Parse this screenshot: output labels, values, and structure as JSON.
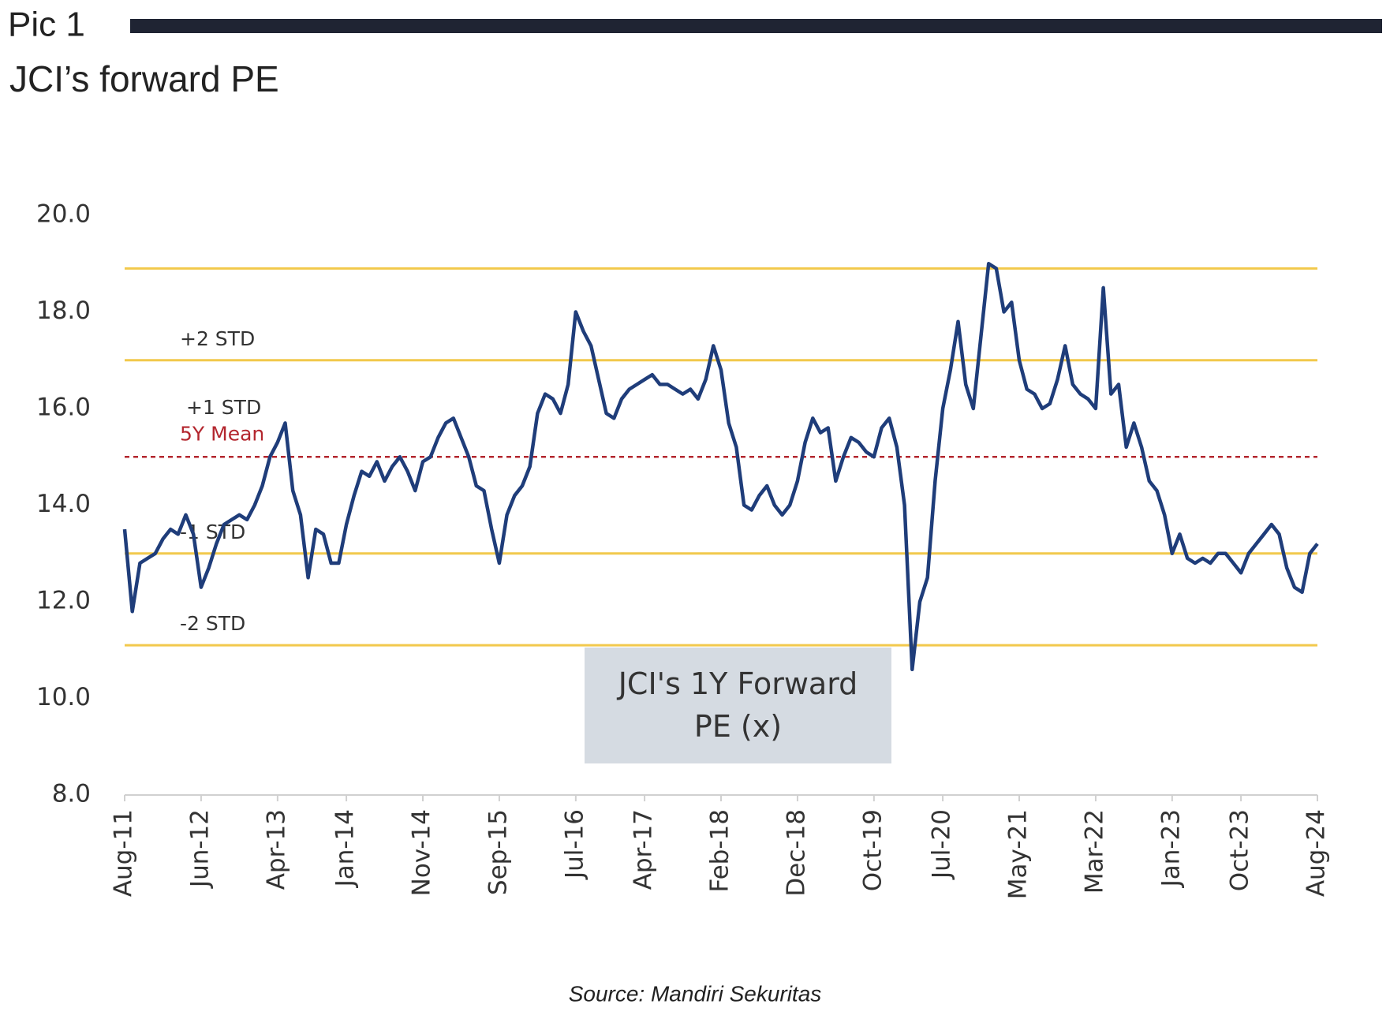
{
  "header": {
    "label": "Pic 1",
    "title": "JCI’s forward PE"
  },
  "chart_data": {
    "type": "line",
    "x": [
      "Aug-11",
      "Sep-11",
      "Oct-11",
      "Nov-11",
      "Dec-11",
      "Jan-12",
      "Feb-12",
      "Mar-12",
      "Apr-12",
      "May-12",
      "Jun-12",
      "Jul-12",
      "Aug-12",
      "Sep-12",
      "Oct-12",
      "Nov-12",
      "Dec-12",
      "Jan-13",
      "Feb-13",
      "Mar-13",
      "Apr-13",
      "May-13",
      "Jun-13",
      "Jul-13",
      "Aug-13",
      "Sep-13",
      "Oct-13",
      "Nov-13",
      "Dec-13",
      "Jan-14",
      "Feb-14",
      "Mar-14",
      "Apr-14",
      "May-14",
      "Jun-14",
      "Jul-14",
      "Aug-14",
      "Sep-14",
      "Oct-14",
      "Nov-14",
      "Dec-14",
      "Jan-15",
      "Feb-15",
      "Mar-15",
      "Apr-15",
      "May-15",
      "Jun-15",
      "Jul-15",
      "Aug-15",
      "Sep-15",
      "Oct-15",
      "Nov-15",
      "Dec-15",
      "Jan-16",
      "Feb-16",
      "Mar-16",
      "Apr-16",
      "May-16",
      "Jun-16",
      "Jul-16",
      "Aug-16",
      "Sep-16",
      "Oct-16",
      "Nov-16",
      "Dec-16",
      "Jan-17",
      "Feb-17",
      "Mar-17",
      "Apr-17",
      "May-17",
      "Jun-17",
      "Jul-17",
      "Aug-17",
      "Sep-17",
      "Oct-17",
      "Nov-17",
      "Dec-17",
      "Jan-18",
      "Feb-18",
      "Mar-18",
      "Apr-18",
      "May-18",
      "Jun-18",
      "Jul-18",
      "Aug-18",
      "Sep-18",
      "Oct-18",
      "Nov-18",
      "Dec-18",
      "Jan-19",
      "Feb-19",
      "Mar-19",
      "Apr-19",
      "May-19",
      "Jun-19",
      "Jul-19",
      "Aug-19",
      "Sep-19",
      "Oct-19",
      "Nov-19",
      "Dec-19",
      "Jan-20",
      "Feb-20",
      "Mar-20",
      "Apr-20",
      "May-20",
      "Jun-20",
      "Jul-20",
      "Aug-20",
      "Sep-20",
      "Oct-20",
      "Nov-20",
      "Dec-20",
      "Jan-21",
      "Feb-21",
      "Mar-21",
      "Apr-21",
      "May-21",
      "Jun-21",
      "Jul-21",
      "Aug-21",
      "Sep-21",
      "Oct-21",
      "Nov-21",
      "Dec-21",
      "Jan-22",
      "Feb-22",
      "Mar-22",
      "Apr-22",
      "May-22",
      "Jun-22",
      "Jul-22",
      "Aug-22",
      "Sep-22",
      "Oct-22",
      "Nov-22",
      "Dec-22",
      "Jan-23",
      "Feb-23",
      "Mar-23",
      "Apr-23",
      "May-23",
      "Jun-23",
      "Jul-23",
      "Aug-23",
      "Sep-23",
      "Oct-23",
      "Nov-23",
      "Dec-23",
      "Jan-24",
      "Feb-24",
      "Mar-24",
      "Apr-24",
      "May-24",
      "Jun-24",
      "Jul-24",
      "Aug-24"
    ],
    "series": [
      {
        "name": "JCI's 1Y Forward PE (x)",
        "color": "#1f3d7a",
        "values": [
          13.5,
          11.8,
          12.8,
          12.9,
          13.0,
          13.3,
          13.5,
          13.4,
          13.8,
          13.4,
          12.3,
          12.7,
          13.2,
          13.6,
          13.7,
          13.8,
          13.7,
          14.0,
          14.4,
          15.0,
          15.3,
          15.7,
          14.3,
          13.8,
          12.5,
          13.5,
          13.4,
          12.8,
          12.8,
          13.6,
          14.2,
          14.7,
          14.6,
          14.9,
          14.5,
          14.8,
          15.0,
          14.7,
          14.3,
          14.9,
          15.0,
          15.4,
          15.7,
          15.8,
          15.4,
          15.0,
          14.4,
          14.3,
          13.5,
          12.8,
          13.8,
          14.2,
          14.4,
          14.8,
          15.9,
          16.3,
          16.2,
          15.9,
          16.5,
          18.0,
          17.6,
          17.3,
          16.6,
          15.9,
          15.8,
          16.2,
          16.4,
          16.5,
          16.6,
          16.7,
          16.5,
          16.5,
          16.4,
          16.3,
          16.4,
          16.2,
          16.6,
          17.3,
          16.8,
          15.7,
          15.2,
          14.0,
          13.9,
          14.2,
          14.4,
          14.0,
          13.8,
          14.0,
          14.5,
          15.3,
          15.8,
          15.5,
          15.6,
          14.5,
          15.0,
          15.4,
          15.3,
          15.1,
          15.0,
          15.6,
          15.8,
          15.2,
          14.0,
          10.6,
          12.0,
          12.5,
          14.5,
          16.0,
          16.8,
          17.8,
          16.5,
          16.0,
          17.5,
          19.0,
          18.9,
          18.0,
          18.2,
          17.0,
          16.4,
          16.3,
          16.0,
          16.1,
          16.6,
          17.3,
          16.5,
          16.3,
          16.2,
          16.0,
          18.5,
          16.3,
          16.5,
          15.2,
          15.7,
          15.2,
          14.5,
          14.3,
          13.8,
          13.0,
          13.4,
          12.9,
          12.8,
          12.9,
          12.8,
          13.0,
          13.0,
          12.8,
          12.6,
          13.0,
          13.2,
          13.4,
          13.6,
          13.4,
          12.7,
          12.3,
          12.2,
          13.0,
          13.2
        ]
      }
    ],
    "xticks": [
      "Aug-11",
      "Jun-12",
      "Apr-13",
      "Jan-14",
      "Nov-14",
      "Sep-15",
      "Jul-16",
      "Apr-17",
      "Feb-18",
      "Dec-18",
      "Oct-19",
      "Jul-20",
      "May-21",
      "Mar-22",
      "Jan-23",
      "Oct-23",
      "Aug-24"
    ],
    "ylim": [
      8,
      20
    ],
    "yticks": [
      {
        "value": 8,
        "label": "8.0"
      },
      {
        "value": 10,
        "label": "10.0"
      },
      {
        "value": 12,
        "label": "12.0"
      },
      {
        "value": 14,
        "label": "14.0"
      },
      {
        "value": 16,
        "label": "16.0"
      },
      {
        "value": 18,
        "label": "18.0"
      },
      {
        "value": 20,
        "label": "20.0"
      }
    ],
    "reference_lines": [
      {
        "value": 18.9,
        "color": "#f2c94c"
      },
      {
        "value": 17.0,
        "label": "+2 STD",
        "color": "#f2c94c"
      },
      {
        "value": 15.0,
        "label": "5Y Mean",
        "color": "#b3262e",
        "dashed": true
      },
      {
        "value": 13.0,
        "label": "-1 STD",
        "color": "#f2c94c"
      },
      {
        "value": 11.1,
        "label": "-2 STD",
        "color": "#f2c94c"
      }
    ],
    "annotations": [
      {
        "text": "+1 STD",
        "y": 16.0
      }
    ]
  },
  "source": "Source: Mandiri Sekuritas"
}
